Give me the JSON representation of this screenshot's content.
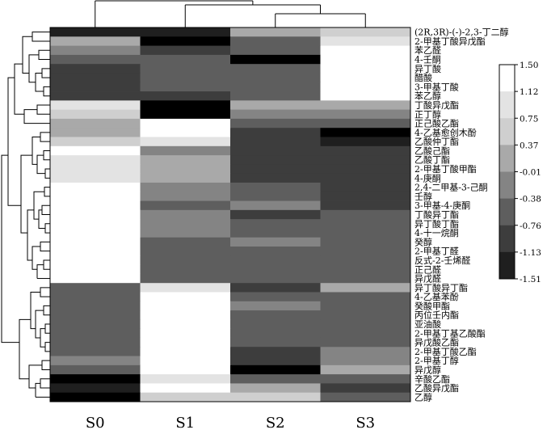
{
  "chart_data": {
    "type": "heatmap",
    "title": "",
    "xlabel": "",
    "ylabel": "",
    "columns": [
      "S0",
      "S1",
      "S2",
      "S3"
    ],
    "rows": [
      "(2R,3R)-(-)-2,3-丁二醇",
      "2-甲基丁酸异戊酯",
      "苯乙醛",
      "4-壬酮",
      "异丁酸",
      "醋酸",
      "3-甲基丁酸",
      "苯乙醇",
      "丁酸异戊酯",
      "正丁醇",
      "正己酸乙酯",
      "4-乙基愈创木酚",
      "乙酸仲丁酯",
      "乙酸己酯",
      "乙酸丁酯",
      "2-甲基丁酸甲酯",
      "4-庚酮",
      "2,4-二甲基-3-己酮",
      "壬醇",
      "3-甲基-4-庚酮",
      "丁酸异丁酯",
      "异丁酸丁酯",
      "4-十一烷酮",
      "癸醇",
      "2-甲基丁醛",
      "反式-2-壬烯醛",
      "正己醛",
      "异戊醛",
      "异丁酸异丁酯",
      "4-乙基苯酚",
      "癸酸甲酯",
      "丙位壬内酯",
      "亚油酸",
      "2-甲基丁基乙酸酯",
      "异戊酸乙酯",
      "2-甲基丁酸乙酯",
      "2-甲基丁醇",
      "异戊醇",
      "辛酸乙酯",
      "乙酸异戊酯",
      "乙醇"
    ],
    "values": [
      [
        -1.13,
        -1.13,
        0.37,
        0.75
      ],
      [
        0.37,
        -1.51,
        -0.38,
        1.12
      ],
      [
        -0.01,
        -0.76,
        -0.38,
        1.5
      ],
      [
        -0.38,
        -0.38,
        -1.51,
        1.5
      ],
      [
        -0.76,
        -0.38,
        -0.38,
        1.5
      ],
      [
        -0.76,
        -0.38,
        -0.38,
        1.5
      ],
      [
        -0.76,
        -0.38,
        -0.38,
        1.5
      ],
      [
        -0.76,
        -0.76,
        -0.38,
        1.5
      ],
      [
        1.12,
        -1.51,
        0.37,
        0.37
      ],
      [
        0.75,
        -1.51,
        -0.01,
        -0.01
      ],
      [
        0.37,
        1.5,
        -0.38,
        -0.38
      ],
      [
        0.37,
        1.5,
        -0.76,
        -1.51
      ],
      [
        0.75,
        1.12,
        -0.76,
        -1.13
      ],
      [
        1.5,
        -0.01,
        -0.76,
        -0.76
      ],
      [
        1.12,
        0.37,
        -0.76,
        -0.76
      ],
      [
        1.12,
        0.37,
        -0.76,
        -0.76
      ],
      [
        1.12,
        0.37,
        -0.76,
        -0.76
      ],
      [
        1.5,
        -0.01,
        -0.38,
        -0.76
      ],
      [
        1.5,
        -0.01,
        -0.38,
        -0.76
      ],
      [
        1.5,
        -0.38,
        -0.01,
        -0.76
      ],
      [
        1.5,
        -0.01,
        -0.76,
        -0.38
      ],
      [
        1.5,
        -0.01,
        -0.38,
        -0.38
      ],
      [
        1.5,
        -0.01,
        -0.38,
        -0.38
      ],
      [
        1.5,
        -0.38,
        -0.01,
        -0.38
      ],
      [
        1.5,
        -0.38,
        -0.38,
        -0.38
      ],
      [
        1.5,
        -0.38,
        -0.38,
        -0.38
      ],
      [
        1.5,
        -0.38,
        -0.38,
        -0.38
      ],
      [
        1.5,
        -0.38,
        -0.38,
        -0.38
      ],
      [
        -0.38,
        1.12,
        -0.76,
        0.37
      ],
      [
        -0.38,
        1.5,
        -0.38,
        -0.38
      ],
      [
        -0.38,
        1.5,
        -0.01,
        -0.38
      ],
      [
        -0.38,
        1.5,
        -0.38,
        -0.38
      ],
      [
        -0.38,
        1.5,
        -0.38,
        -0.38
      ],
      [
        -0.38,
        1.5,
        -0.38,
        -0.38
      ],
      [
        -0.38,
        1.5,
        -0.38,
        -0.38
      ],
      [
        -0.38,
        1.5,
        -0.76,
        -0.01
      ],
      [
        -0.01,
        1.5,
        -0.76,
        -0.01
      ],
      [
        -0.38,
        1.5,
        -1.51,
        0.37
      ],
      [
        -1.51,
        1.12,
        -0.38,
        -0.38
      ],
      [
        -1.13,
        1.5,
        0.37,
        -0.76
      ],
      [
        -1.51,
        0.75,
        0.75,
        -0.38
      ]
    ],
    "colorbar": {
      "ticks": [
        "1.50",
        "1.12",
        "0.75",
        "0.37",
        "-0.01",
        "-0.38",
        "-0.76",
        "-1.13",
        "-1.51"
      ],
      "min": -1.51,
      "max": 1.5
    },
    "dendrogram": {
      "columns": "[[S0,[S1,[S2,S3]]]]",
      "rows": "hierarchical clustering tree on left side"
    },
    "colormap": "grayscale",
    "colormap_low": "#000000",
    "colormap_high": "#ffffff",
    "legend_position": "right"
  }
}
